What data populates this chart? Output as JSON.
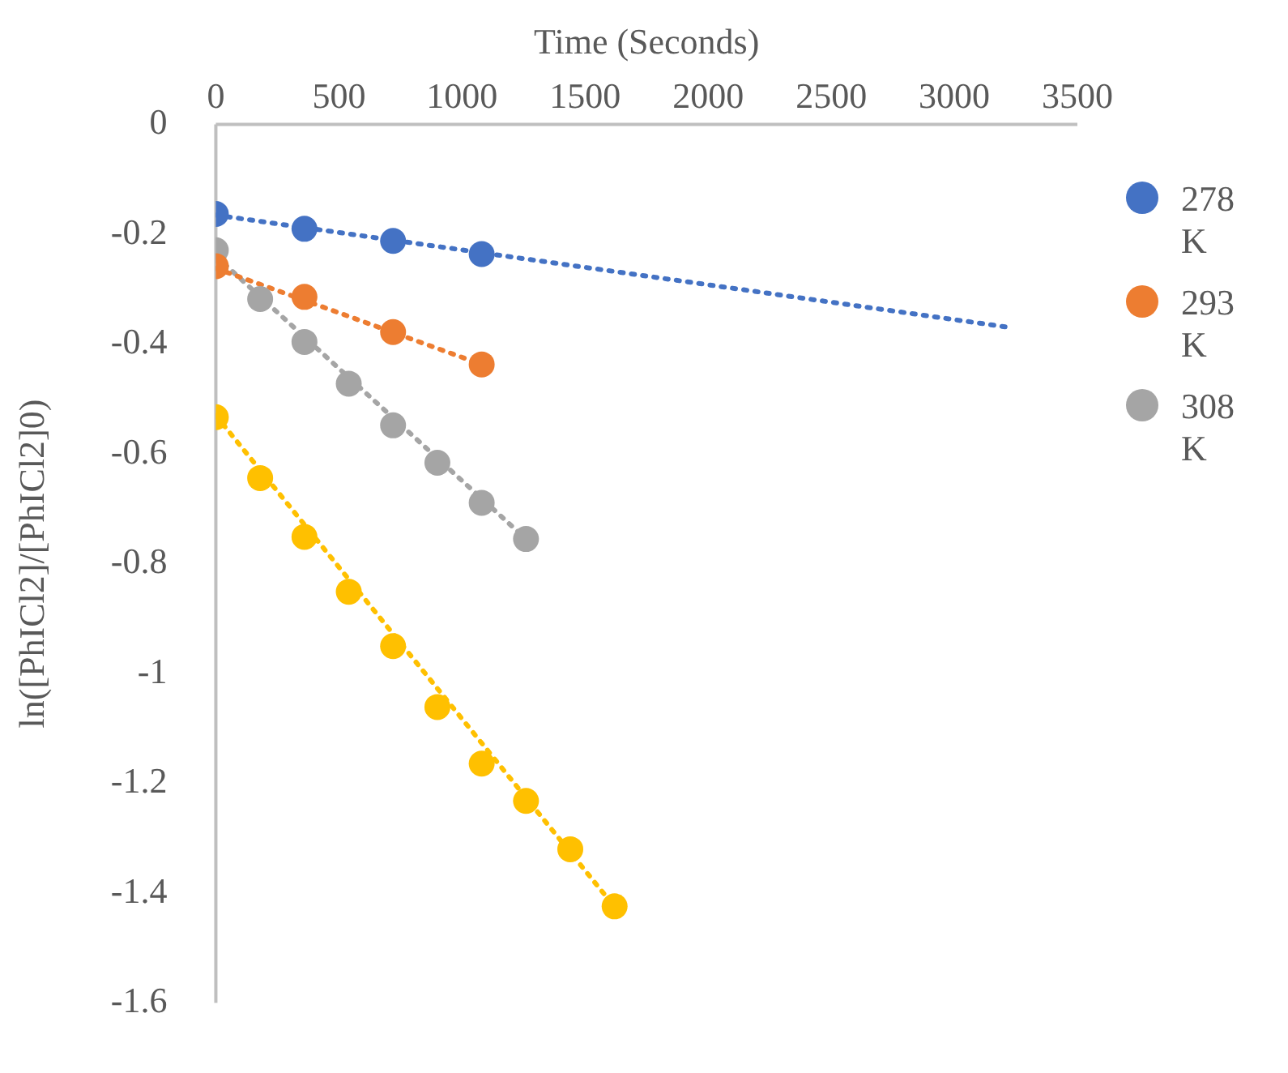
{
  "chart_data": {
    "type": "scatter",
    "xlabel": "Time (Seconds)",
    "ylabel": "ln([PhICl2]/[PhICl2]0)",
    "xlim": [
      0,
      3500
    ],
    "xticks": [
      0,
      500,
      1000,
      1500,
      2000,
      2500,
      3000,
      3500
    ],
    "ylim": [
      -1.6,
      0
    ],
    "yticks": [
      -1.6,
      -1.4,
      -1.2,
      -1,
      -0.8,
      -0.6,
      -0.4,
      -0.2,
      0
    ],
    "grid": false,
    "legend": "right",
    "marker": "circle",
    "series": [
      {
        "name": "278 K",
        "color": "#4472c4",
        "x": [
          0,
          360,
          720,
          1080
        ],
        "values": [
          -0.163,
          -0.19,
          -0.212,
          -0.236
        ]
      },
      {
        "name": "293 K",
        "color": "#ed7d31",
        "x": [
          0,
          360,
          720,
          1080
        ],
        "values": [
          -0.258,
          -0.314,
          -0.378,
          -0.437
        ]
      },
      {
        "name": "308 K",
        "color": "#a5a5a5",
        "x": [
          0,
          180,
          360,
          540,
          720,
          900,
          1080,
          1260
        ],
        "values": [
          -0.229,
          -0.318,
          -0.396,
          -0.472,
          -0.548,
          -0.616,
          -0.689,
          -0.755
        ]
      },
      {
        "color": "#ffc000",
        "x": [
          0,
          180,
          360,
          540,
          720,
          900,
          1080,
          1260,
          1440,
          1620
        ],
        "values": [
          -0.533,
          -0.644,
          -0.751,
          -0.851,
          -0.95,
          -1.061,
          -1.164,
          -1.232,
          -1.32,
          -1.424
        ]
      },
      {
        "type": "line",
        "marker": "none",
        "line_style": "dotted",
        "color": "#4472c4",
        "x": [
          0,
          3230
        ],
        "values": [
          -0.165,
          -0.37
        ]
      },
      {
        "type": "line",
        "marker": "none",
        "line_style": "dotted",
        "color": "#ed7d31",
        "x": [
          0,
          1080
        ],
        "values": [
          -0.262,
          -0.437
        ]
      },
      {
        "type": "line",
        "marker": "none",
        "line_style": "dotted",
        "color": "#a5a5a5",
        "x": [
          0,
          1260
        ],
        "values": [
          -0.24,
          -0.755
        ]
      },
      {
        "type": "line",
        "marker": "none",
        "line_style": "dotted",
        "color": "#ffc000",
        "x": [
          0,
          1620
        ],
        "values": [
          -0.53,
          -1.425
        ]
      }
    ]
  }
}
